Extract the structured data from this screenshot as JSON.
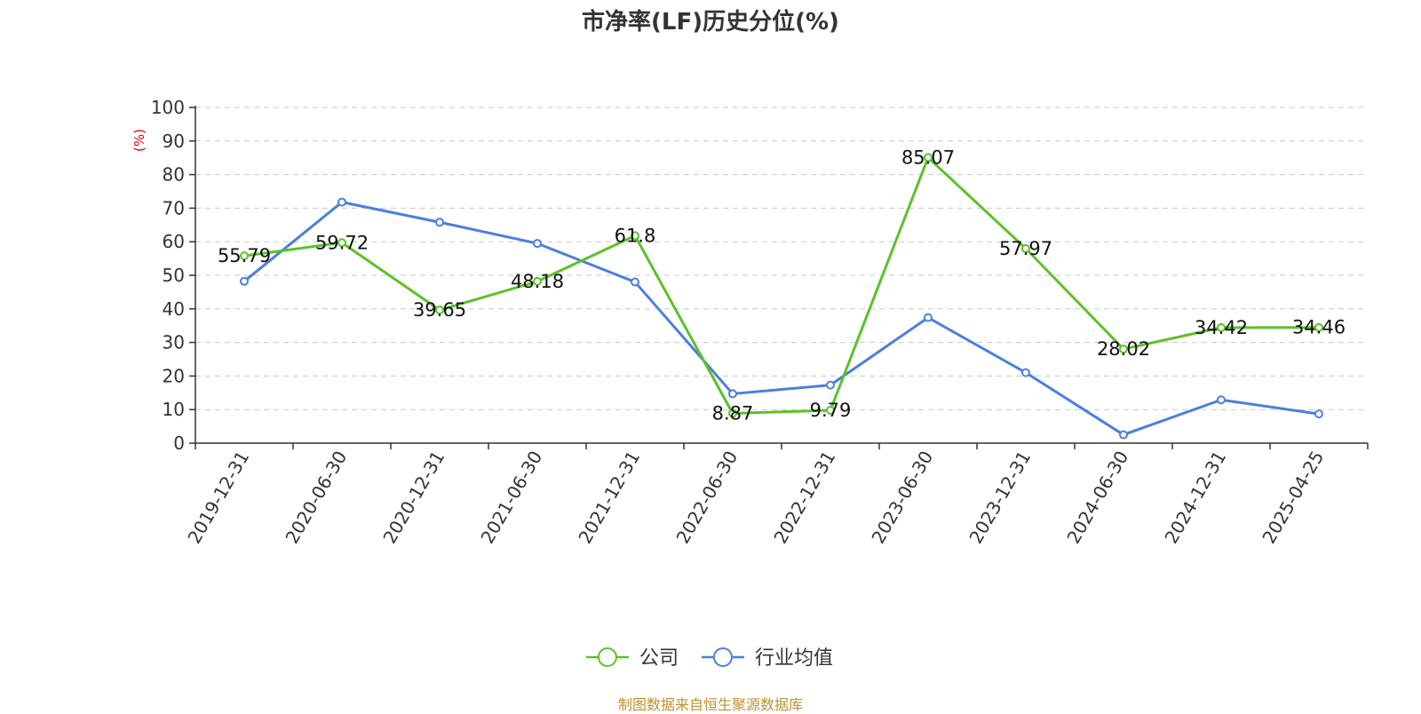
{
  "title": "市净率(LF)历史分位(%)",
  "source_note": "制图数据来自恒生聚源数据库",
  "colors": {
    "company": "#5cc12b",
    "industry": "#4a7fe0",
    "unit_label": "#e00000",
    "source_note": "#c09030",
    "grid": "#c8c8c8",
    "axis": "#333333"
  },
  "chart_data": {
    "type": "line",
    "title": "市净率(LF)历史分位(%)",
    "ylabel": "(%)",
    "ylim": [
      0,
      100
    ],
    "yticks": [
      "0",
      "10",
      "20",
      "30",
      "40",
      "50",
      "60",
      "70",
      "80",
      "90",
      "100"
    ],
    "grid": true,
    "legend_position": "bottom",
    "categories": [
      "2019-12-31",
      "2020-06-30",
      "2020-12-31",
      "2021-06-30",
      "2021-12-31",
      "2022-06-30",
      "2022-12-31",
      "2023-06-30",
      "2023-12-31",
      "2024-06-30",
      "2024-12-31",
      "2025-04-25"
    ],
    "series": [
      {
        "name": "公司",
        "values": [
          55.79,
          59.72,
          39.65,
          48.18,
          61.8,
          8.87,
          9.79,
          85.07,
          57.97,
          28.02,
          34.42,
          34.46
        ],
        "labels": [
          "55.79",
          "59.72",
          "39.65",
          "48.18",
          "61.8",
          "8.87",
          "9.79",
          "85.07",
          "57.97",
          "28.02",
          "34.42",
          "34.46"
        ]
      },
      {
        "name": "行业均值",
        "values": [
          48.2,
          71.8,
          65.8,
          59.5,
          48.0,
          14.7,
          17.3,
          37.4,
          21.0,
          2.5,
          12.9,
          8.7
        ]
      }
    ]
  }
}
